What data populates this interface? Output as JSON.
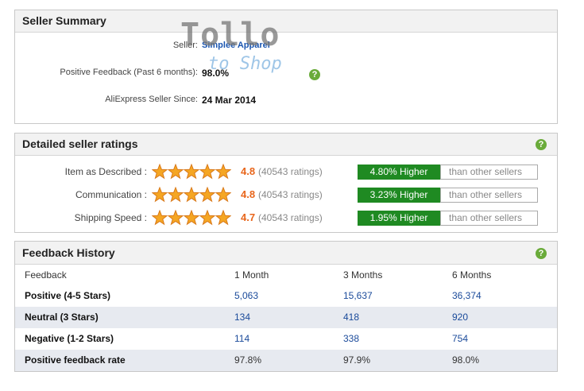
{
  "seller_summary": {
    "title": "Seller Summary",
    "rows": [
      {
        "label": "Seller:",
        "value": "Simplee Apparel"
      },
      {
        "label": "Positive Feedback (Past 6 months):",
        "value": "98.0%"
      },
      {
        "label": "AliExpress Seller Since:",
        "value": "24 Mar 2014"
      }
    ]
  },
  "watermark": {
    "line1": "Tollo",
    "line2": "to Shop"
  },
  "help_icon": "?",
  "detailed_ratings": {
    "title": "Detailed seller ratings",
    "rows": [
      {
        "label": "Item as Described :",
        "score": "4.8",
        "count": "(40543 ratings)",
        "comparison": "4.80% Higher",
        "comparison_note": "than other sellers"
      },
      {
        "label": "Communication :",
        "score": "4.8",
        "count": "(40543 ratings)",
        "comparison": "3.23% Higher",
        "comparison_note": "than other sellers"
      },
      {
        "label": "Shipping Speed :",
        "score": "4.7",
        "count": "(40543 ratings)",
        "comparison": "1.95% Higher",
        "comparison_note": "than other sellers"
      }
    ]
  },
  "feedback_history": {
    "title": "Feedback History",
    "columns": [
      "Feedback",
      "1 Month",
      "3 Months",
      "6 Months"
    ],
    "rows": [
      [
        "Positive (4-5 Stars)",
        "5,063",
        "15,637",
        "36,374"
      ],
      [
        "Neutral (3 Stars)",
        "134",
        "418",
        "920"
      ],
      [
        "Negative (1-2 Stars)",
        "114",
        "338",
        "754"
      ],
      [
        "Positive feedback rate",
        "97.8%",
        "97.9%",
        "98.0%"
      ]
    ]
  }
}
